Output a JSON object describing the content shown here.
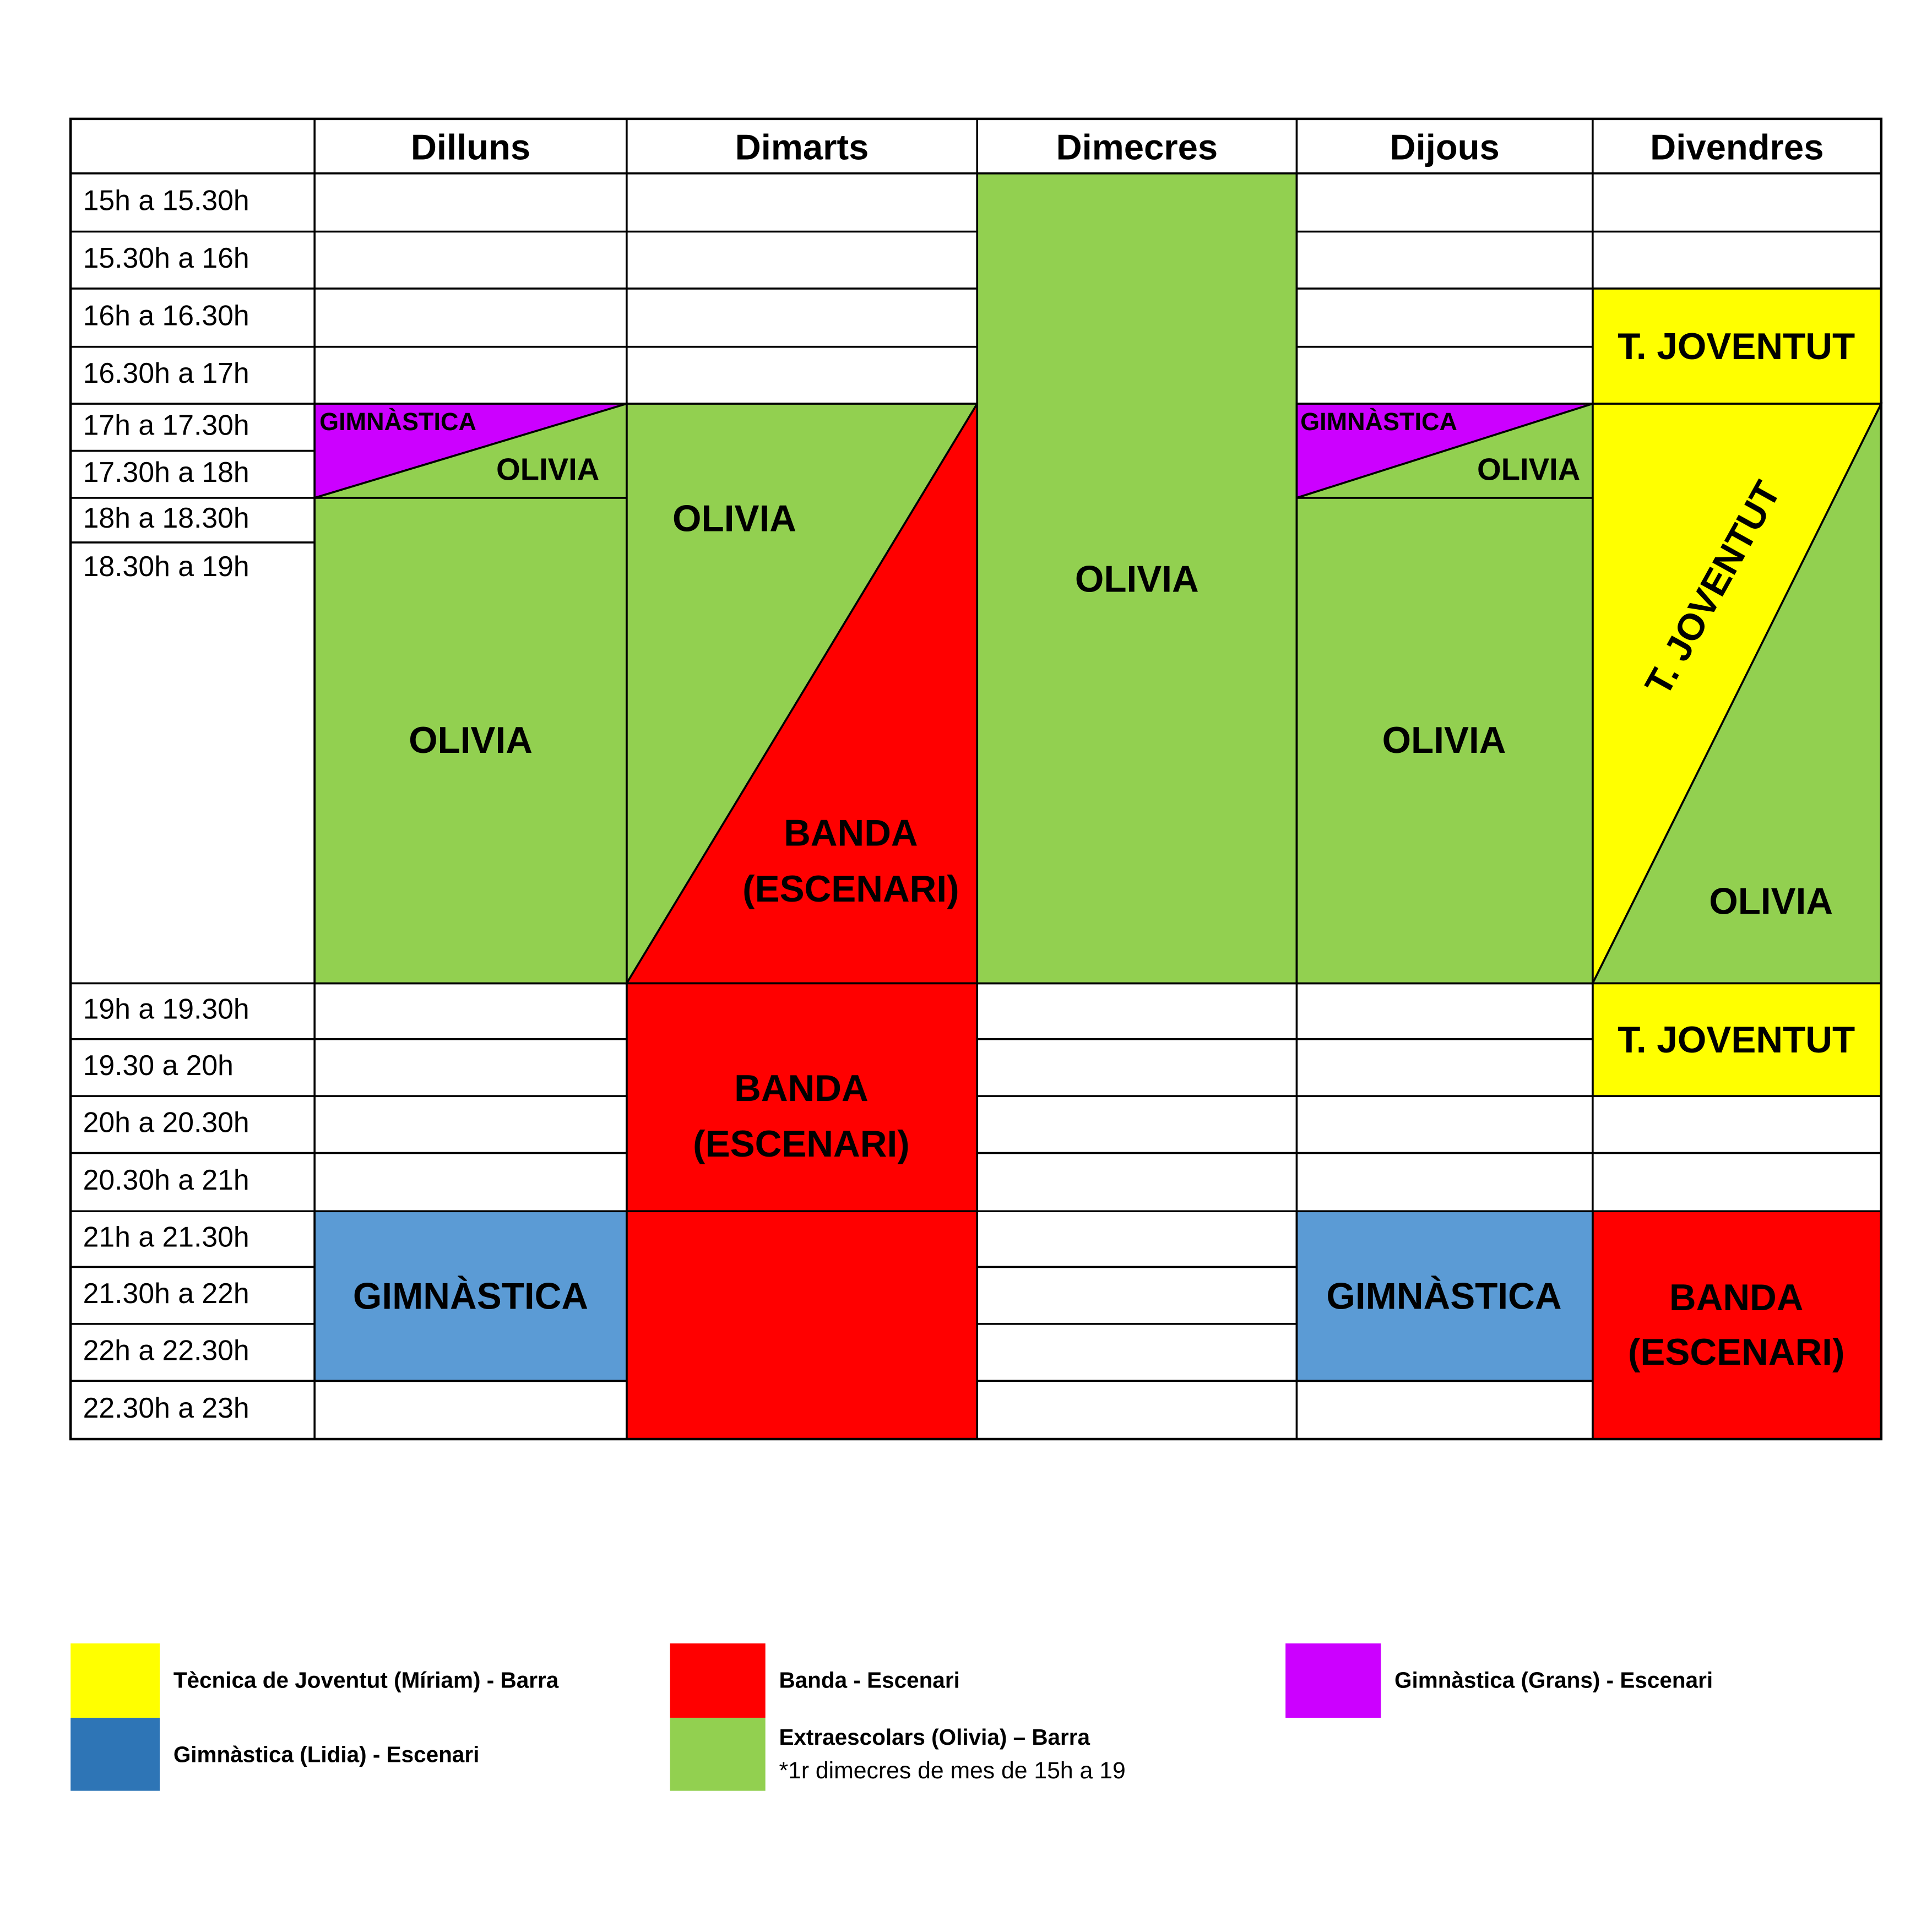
{
  "days": [
    "Dilluns",
    "Dimarts",
    "Dimecres",
    "Dijous",
    "Divendres"
  ],
  "times": [
    "15h a 15.30h",
    "15.30h a 16h",
    "16h a 16.30h",
    "16.30h a 17h",
    "17h a 17.30h",
    "17.30h a 18h",
    "18h a 18.30h",
    "18.30h a 19h",
    "19h a 19.30h",
    "19.30 a 20h",
    "20h a 20.30h",
    "20.30h a 21h",
    "21h a 21.30h",
    "21.30h a 22h",
    "22h a 22.30h",
    "22.30h a 23h"
  ],
  "columns": [
    [
      "GIMNÀSTICA",
      "OLIVIA",
      "OLIVIA",
      "GIMNÀSTICA"
    ],
    [
      "OLIVIA",
      "BANDA",
      "(ESCENARI)",
      "BANDA",
      "(ESCENARI)"
    ],
    [
      "OLIVIA"
    ],
    [
      "GIMNÀSTICA",
      "OLIVIA",
      "OLIVIA",
      "GIMNÀSTICA"
    ],
    [
      "T. JOVENTUT",
      "T. JOVENTUT",
      "OLIVIA",
      "T. JOVENTUT",
      "BANDA",
      "(ESCENARI)"
    ]
  ],
  "legend": [
    {
      "label": "Tècnica de Joventut (Míriam) - Barra"
    },
    {
      "label": "Gimnàstica (Lidia) - Escenari"
    },
    {
      "label": "Banda - Escenari"
    },
    {
      "label": "Extraescolars (Olivia) – Barra",
      "note": "*1r dimecres de mes de 15h a 19"
    },
    {
      "label": "Gimnàstica (Grans) - Escenari"
    }
  ]
}
